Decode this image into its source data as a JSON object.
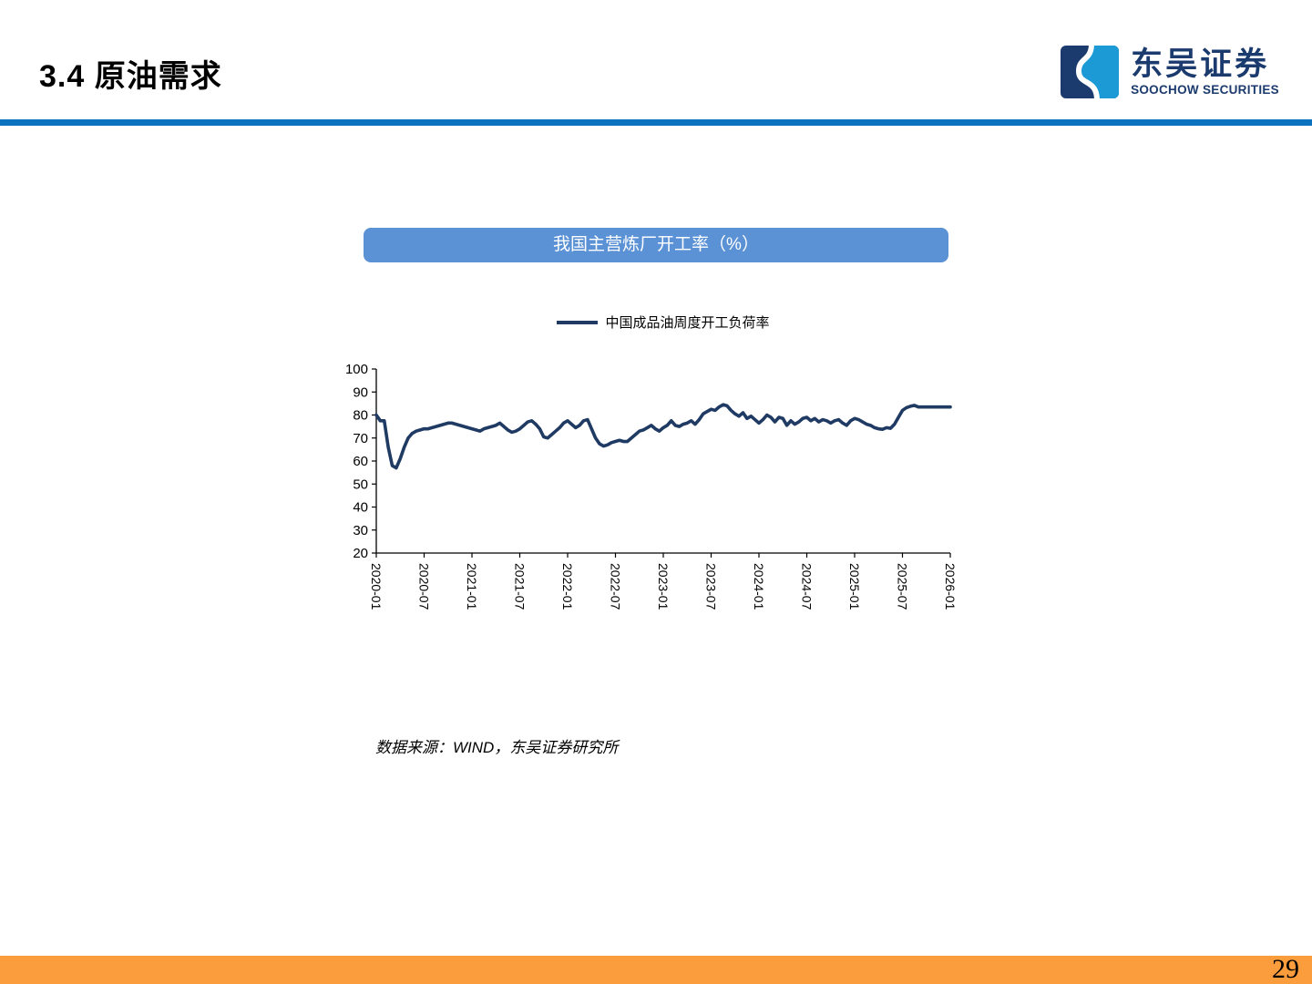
{
  "header": {
    "title": "3.4 原油需求",
    "logo": {
      "cn": "东吴证券",
      "en": "SOOCHOW SECURITIES"
    }
  },
  "chart": {
    "panel_title": "我国主营炼厂开工率（%）",
    "source": "数据来源：WIND，东吴证券研究所"
  },
  "chart_data": {
    "type": "line",
    "title": "我国主营炼厂开工率（%）",
    "xlabel": "",
    "ylabel": "",
    "ylim": [
      20,
      100
    ],
    "yticks": [
      20,
      30,
      40,
      50,
      60,
      70,
      80,
      90,
      100
    ],
    "xticks": [
      "2020-01",
      "2020-07",
      "2021-01",
      "2021-07",
      "2022-01",
      "2022-07",
      "2023-01",
      "2023-07",
      "2024-01",
      "2024-07",
      "2025-01",
      "2025-07",
      "2026-01"
    ],
    "x_range": [
      "2020-01",
      "2026-01"
    ],
    "interval": "semi-monthly",
    "grid": false,
    "legend_position": "top",
    "series": [
      {
        "name": "中国成品油周度开工负荷率",
        "color": "#1F3A63",
        "values": [
          80,
          77.5,
          77.5,
          66,
          58,
          57,
          61,
          66,
          70,
          72,
          73,
          73.5,
          74,
          74,
          74.5,
          75,
          75.5,
          76,
          76.5,
          76.5,
          76,
          75.5,
          75,
          74.5,
          74,
          73.5,
          73,
          74,
          74.5,
          75,
          75.5,
          76.5,
          75,
          73.5,
          72.5,
          73,
          74,
          75.5,
          77,
          77.5,
          76,
          74,
          70.5,
          70,
          71.5,
          73,
          74.5,
          76.5,
          77.5,
          76,
          74.5,
          75.5,
          77.5,
          78,
          74,
          70,
          67.5,
          66.5,
          67,
          68,
          68.5,
          69,
          68.5,
          68.5,
          70,
          71.5,
          73,
          73.5,
          74.5,
          75.5,
          74,
          73,
          74.5,
          75.5,
          77.5,
          75.5,
          75,
          76,
          76.5,
          77.5,
          76,
          78,
          80.5,
          81.5,
          82.5,
          82,
          83.5,
          84.5,
          84,
          82,
          80.5,
          79.5,
          81,
          78.5,
          79.5,
          78,
          76.5,
          78,
          80,
          79,
          77,
          79,
          78.5,
          75.5,
          77.5,
          76,
          77,
          78.5,
          79,
          77.5,
          78.5,
          77,
          78,
          77.5,
          76.5,
          77.5,
          78,
          76.5,
          75.5,
          77.5,
          78.5,
          78,
          77,
          76,
          75.5,
          74.5,
          74,
          73.8,
          74.5,
          74.2,
          76,
          79,
          82,
          83.2,
          83.8,
          84.2,
          83.5,
          83.5,
          83.5,
          83.5,
          83.5,
          83.5,
          83.5,
          83.5,
          83.5
        ]
      }
    ]
  },
  "footer": {
    "page_number": "29"
  },
  "colors": {
    "header_rule_blue": "#0D72BE",
    "panel_title_blue": "#5B91D5",
    "line_navy": "#1F3A63",
    "footer_orange": "#FB9C3D",
    "logo_navy": "#1B3A6E",
    "logo_light_blue": "#1C9AD6"
  }
}
